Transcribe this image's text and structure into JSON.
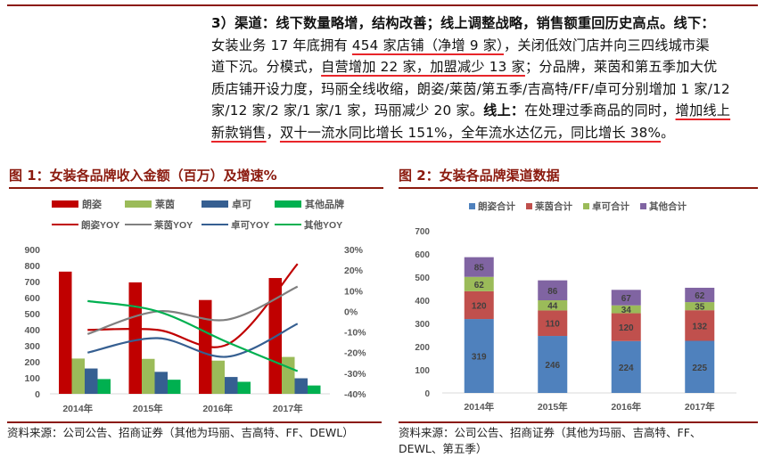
{
  "paragraph": {
    "lines": [
      [
        {
          "t": "3）渠道：线下数量略增，结构改善；线上调整战略，销售额重回历史高点。线下：",
          "b": true
        }
      ],
      [
        {
          "t": "女装业务 17 年底拥有 "
        },
        {
          "t": "454 家店铺（净增 9 家）",
          "u": true
        },
        {
          "t": "，关闭低效门店并向三四线城市渠"
        }
      ],
      [
        {
          "t": "道下沉。分模式，"
        },
        {
          "t": "自营增加 22 家，加盟减少 13 家",
          "u": true
        },
        {
          "t": "；分品牌，莱茵和第五季加大优"
        }
      ],
      [
        {
          "t": "质店铺开设力度，玛丽全线收缩，朗姿/莱茵/第五季/吉高特/FF/卓可分别增加 1 家/12"
        }
      ],
      [
        {
          "t": "家/12 家/2 家/1 家/1 家，玛丽减少 20 家。"
        },
        {
          "t": "线上：",
          "b": true
        },
        {
          "t": "在处理过季商品的同时，"
        },
        {
          "t": "增加线上",
          "u": true
        }
      ],
      [
        {
          "t": "新款销售",
          "u": true
        },
        {
          "t": "，"
        },
        {
          "t": "双十一流水同比增长 151%，全年流水达亿元，同比增长 38%",
          "u": true
        },
        {
          "t": "。"
        }
      ]
    ]
  },
  "figure1": {
    "title": "图 1：女装各品牌收入金额（百万）及增速%",
    "source": "资料来源：公司公告、招商证券（其他为玛丽、吉高特、FF、DEWL）"
  },
  "figure2": {
    "title": "图 2：女装各品牌渠道数据",
    "source_line1": "资料来源：公司公告、招商证券（其他为玛丽、吉高特、FF、",
    "source_line2": "DEWL、第五季）"
  },
  "chart_data": [
    {
      "type": "bar",
      "title": "女装各品牌收入金额（百万）及增速%",
      "categories": [
        "2014年",
        "2015年",
        "2016年",
        "2017年"
      ],
      "series": [
        {
          "name": "朗姿",
          "kind": "bar",
          "color": "#c00000",
          "values": [
            762,
            695,
            585,
            722
          ]
        },
        {
          "name": "莱茵",
          "kind": "bar",
          "color": "#9bbb59",
          "values": [
            220,
            218,
            207,
            230
          ]
        },
        {
          "name": "卓可",
          "kind": "bar",
          "color": "#365f91",
          "values": [
            158,
            137,
            105,
            97
          ]
        },
        {
          "name": "其他品牌",
          "kind": "bar",
          "color": "#00b050",
          "values": [
            92,
            88,
            75,
            52
          ]
        },
        {
          "name": "朗姿YOY",
          "kind": "line",
          "axis": "right",
          "color": "#c00000",
          "values": [
            -9,
            -9,
            -16,
            23
          ]
        },
        {
          "name": "莱茵YOY",
          "kind": "line",
          "axis": "right",
          "color": "#808080",
          "values": [
            -11,
            0,
            -4,
            12
          ]
        },
        {
          "name": "卓可YOY",
          "kind": "line",
          "axis": "right",
          "color": "#365f91",
          "values": [
            -20,
            -13,
            -22,
            -6
          ]
        },
        {
          "name": "其他YOY",
          "kind": "line",
          "axis": "right",
          "color": "#00b050",
          "values": [
            5,
            0,
            -15,
            -29
          ]
        }
      ],
      "ylim": [
        0,
        900
      ],
      "yticks": [
        "0",
        "100",
        "200",
        "300",
        "400",
        "500",
        "600",
        "700",
        "800",
        "900"
      ],
      "y2lim": [
        -40,
        30
      ],
      "y2ticks": [
        "-40%",
        "-30%",
        "-20%",
        "-10%",
        "0%",
        "10%",
        "20%",
        "30%"
      ],
      "legend_position": "top",
      "grid": false
    },
    {
      "type": "bar",
      "stacked": true,
      "title": "女装各品牌渠道数据",
      "categories": [
        "2014年",
        "2015年",
        "2016年",
        "2017年"
      ],
      "series": [
        {
          "name": "朗姿合计",
          "color": "#4f81bd",
          "values": [
            319,
            246,
            224,
            225
          ]
        },
        {
          "name": "莱茵合计",
          "color": "#c0504d",
          "values": [
            120,
            110,
            120,
            132
          ]
        },
        {
          "name": "卓可合计",
          "color": "#9bbb59",
          "values": [
            62,
            44,
            34,
            35
          ]
        },
        {
          "name": "其他合计",
          "color": "#8064a2",
          "values": [
            85,
            86,
            67,
            62
          ]
        }
      ],
      "ylim": [
        0,
        700
      ],
      "yticks": [
        "0",
        "100",
        "200",
        "300",
        "400",
        "500",
        "600",
        "700"
      ],
      "legend_position": "top",
      "grid": false
    }
  ]
}
